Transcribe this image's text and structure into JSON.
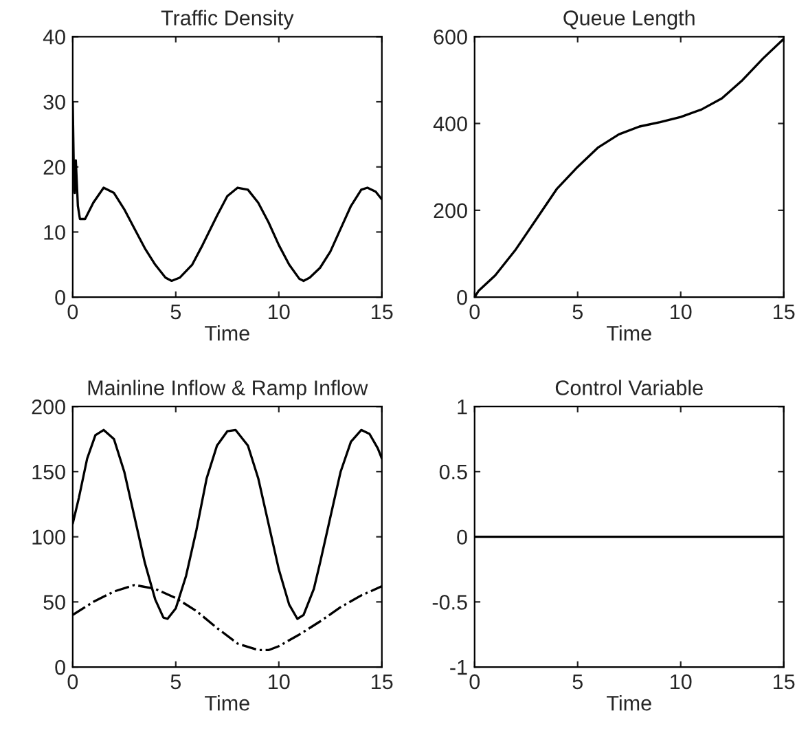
{
  "chart_data": [
    {
      "type": "line",
      "title": "Traffic Density",
      "xlabel": "Time",
      "xlim": [
        0,
        15
      ],
      "ylim": [
        0,
        40
      ],
      "xticks": [
        0,
        5,
        10,
        15
      ],
      "yticks": [
        0,
        10,
        20,
        30,
        40
      ],
      "grid": false,
      "legend": false,
      "series": [
        {
          "color": "#000000",
          "line_style": "solid",
          "x": [
            0,
            0.05,
            0.1,
            0.15,
            0.25,
            0.35,
            0.6,
            1.0,
            1.5,
            2.0,
            2.5,
            3,
            3.5,
            4,
            4.5,
            4.8,
            5.2,
            5.8,
            6.3,
            7,
            7.5,
            8,
            8.5,
            9,
            9.5,
            10,
            10.5,
            11,
            11.2,
            11.5,
            12,
            12.5,
            13,
            13.5,
            14,
            14.3,
            14.7,
            15
          ],
          "values": [
            30,
            20,
            16,
            21,
            14,
            12,
            12,
            14.5,
            16.8,
            16,
            13.5,
            10.5,
            7.5,
            5,
            3,
            2.5,
            3,
            5,
            8,
            12.5,
            15.5,
            16.8,
            16.5,
            14.5,
            11.5,
            8,
            5,
            2.8,
            2.5,
            3,
            4.5,
            7,
            10.5,
            14,
            16.5,
            16.8,
            16.2,
            15
          ]
        }
      ]
    },
    {
      "type": "line",
      "title": "Queue Length",
      "xlabel": "Time",
      "xlim": [
        0,
        15
      ],
      "ylim": [
        0,
        600
      ],
      "xticks": [
        0,
        5,
        10,
        15
      ],
      "yticks": [
        0,
        200,
        400,
        600
      ],
      "grid": false,
      "legend": false,
      "series": [
        {
          "color": "#000000",
          "line_style": "solid",
          "x": [
            0,
            0.2,
            1,
            2,
            3,
            4,
            5,
            6,
            7,
            8,
            9,
            10,
            11,
            12,
            13,
            14,
            15
          ],
          "values": [
            0,
            15,
            50,
            110,
            180,
            250,
            300,
            345,
            375,
            393,
            403,
            415,
            432,
            458,
            500,
            550,
            595
          ]
        }
      ]
    },
    {
      "type": "line",
      "title": "Mainline Inflow & Ramp Inflow",
      "xlabel": "Time",
      "xlim": [
        0,
        15
      ],
      "ylim": [
        0,
        200
      ],
      "xticks": [
        0,
        5,
        10,
        15
      ],
      "yticks": [
        0,
        50,
        100,
        150,
        200
      ],
      "grid": false,
      "legend": false,
      "series": [
        {
          "color": "#000000",
          "line_style": "solid",
          "x": [
            0,
            0.3,
            0.7,
            1.1,
            1.5,
            2,
            2.5,
            3,
            3.5,
            4,
            4.4,
            4.6,
            5,
            5.5,
            6,
            6.5,
            7,
            7.5,
            7.9,
            8.5,
            9,
            9.5,
            10,
            10.5,
            10.9,
            11.2,
            11.7,
            12,
            12.5,
            13,
            13.5,
            14,
            14.4,
            14.8,
            15
          ],
          "values": [
            110,
            130,
            160,
            178,
            182,
            175,
            150,
            115,
            80,
            52,
            38,
            37,
            45,
            70,
            105,
            145,
            170,
            181,
            182,
            170,
            145,
            110,
            75,
            48,
            37,
            40,
            60,
            80,
            115,
            150,
            173,
            182,
            179,
            168,
            160
          ]
        },
        {
          "color": "#000000",
          "line_style": "dashdot",
          "x": [
            0,
            1,
            2,
            3,
            4,
            5,
            6,
            7,
            8,
            9,
            9.5,
            10,
            11,
            12,
            13,
            14,
            15
          ],
          "values": [
            40,
            50,
            58,
            63,
            60,
            53,
            43,
            30,
            18,
            13,
            13,
            16,
            25,
            35,
            46,
            55,
            62
          ]
        }
      ]
    },
    {
      "type": "line",
      "title": "Control Variable",
      "xlabel": "Time",
      "xlim": [
        0,
        15
      ],
      "ylim": [
        -1,
        1
      ],
      "xticks": [
        0,
        5,
        10,
        15
      ],
      "yticks": [
        -1,
        -0.5,
        0,
        0.5,
        1
      ],
      "grid": false,
      "legend": false,
      "series": [
        {
          "color": "#000000",
          "line_style": "solid",
          "x": [
            0,
            15
          ],
          "values": [
            0,
            0
          ]
        }
      ]
    }
  ]
}
